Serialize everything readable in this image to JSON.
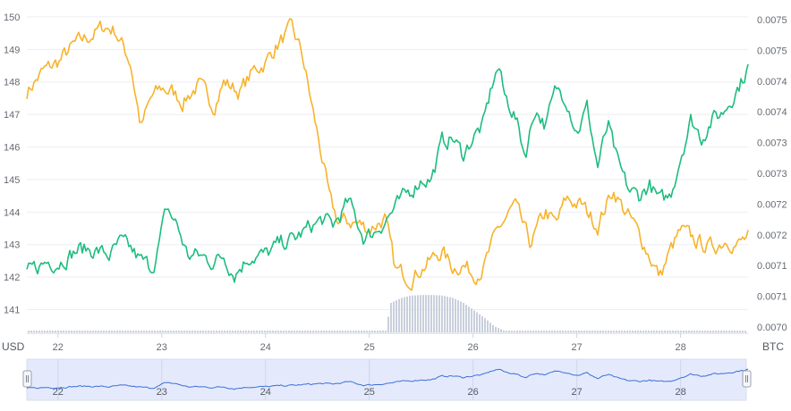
{
  "chart_data": {
    "type": "line",
    "left_unit": "USD",
    "right_unit": "BTC",
    "x_ticks": [
      "22",
      "23",
      "24",
      "25",
      "26",
      "27",
      "28"
    ],
    "x_range_days": [
      21.7,
      28.65
    ],
    "left_axis": {
      "ticks": [
        "141",
        "142",
        "143",
        "144",
        "145",
        "146",
        "147",
        "148",
        "149",
        "150"
      ],
      "range": [
        140.3,
        150.3
      ]
    },
    "right_axis": {
      "ticks": [
        "0.0070",
        "0.0071",
        "0.0071",
        "0.0072",
        "0.0072",
        "0.0073",
        "0.0073",
        "0.0074",
        "0.0074",
        "0.0075",
        "0.0075"
      ],
      "range": [
        0.007,
        0.00755
      ]
    },
    "grid": true,
    "series": [
      {
        "axis": "left",
        "color": "#f7b32b",
        "x": [
          21.7,
          21.85,
          22.0,
          22.15,
          22.3,
          22.45,
          22.55,
          22.7,
          22.8,
          22.9,
          23.0,
          23.1,
          23.2,
          23.35,
          23.5,
          23.6,
          23.75,
          23.9,
          24.0,
          24.1,
          24.25,
          24.35,
          24.45,
          24.55,
          24.62,
          24.7,
          24.85,
          25.0,
          25.15,
          25.25,
          25.4,
          25.55,
          25.7,
          25.8,
          25.9,
          26.0,
          26.1,
          26.25,
          26.4,
          26.55,
          26.7,
          26.8,
          26.9,
          27.05,
          27.2,
          27.35,
          27.45,
          27.55,
          27.65,
          27.8,
          27.9,
          28.0,
          28.15,
          28.3,
          28.45,
          28.55,
          28.65
        ],
        "values": [
          147.7,
          148.3,
          148.6,
          149.1,
          149.4,
          149.7,
          149.6,
          148.6,
          146.6,
          147.5,
          147.8,
          147.7,
          147.4,
          147.9,
          147.3,
          148.0,
          147.7,
          148.4,
          148.6,
          149.1,
          149.6,
          148.9,
          147.2,
          145.6,
          144.3,
          143.7,
          143.7,
          143.5,
          143.8,
          142.2,
          142.0,
          142.4,
          142.8,
          142.3,
          142.4,
          142.1,
          142.3,
          143.5,
          144.2,
          143.0,
          144.0,
          143.6,
          144.4,
          144.2,
          143.6,
          144.7,
          144.1,
          143.6,
          143.0,
          142.0,
          142.8,
          143.4,
          143.1,
          142.9,
          143.2,
          143.0,
          143.2
        ]
      },
      {
        "axis": "right",
        "color": "#1ebc7f",
        "x": [
          21.7,
          21.8,
          21.9,
          22.0,
          22.1,
          22.2,
          22.35,
          22.5,
          22.6,
          22.7,
          22.8,
          22.9,
          22.95,
          23.05,
          23.15,
          23.25,
          23.35,
          23.5,
          23.6,
          23.7,
          23.85,
          24.0,
          24.15,
          24.3,
          24.45,
          24.55,
          24.65,
          24.8,
          24.95,
          25.05,
          25.2,
          25.35,
          25.5,
          25.6,
          25.7,
          25.8,
          25.9,
          26.0,
          26.1,
          26.2,
          26.25,
          26.3,
          26.4,
          26.5,
          26.6,
          26.7,
          26.8,
          26.9,
          27.0,
          27.1,
          27.2,
          27.3,
          27.4,
          27.5,
          27.6,
          27.7,
          27.8,
          27.9,
          28.0,
          28.1,
          28.2,
          28.3,
          28.4,
          28.5,
          28.6,
          28.65
        ],
        "values": [
          0.0071,
          0.00711,
          0.00712,
          0.00712,
          0.00713,
          0.00714,
          0.00714,
          0.00713,
          0.00715,
          0.00714,
          0.00712,
          0.00711,
          0.00713,
          0.00721,
          0.00718,
          0.00713,
          0.00713,
          0.00712,
          0.00713,
          0.0071,
          0.00713,
          0.00713,
          0.00715,
          0.00716,
          0.00718,
          0.00719,
          0.00718,
          0.00722,
          0.00716,
          0.00717,
          0.0072,
          0.00723,
          0.00726,
          0.00726,
          0.00732,
          0.00733,
          0.0073,
          0.00733,
          0.00735,
          0.00743,
          0.00745,
          0.0074,
          0.00737,
          0.0073,
          0.00738,
          0.00735,
          0.00741,
          0.0074,
          0.00734,
          0.00738,
          0.00728,
          0.00735,
          0.00728,
          0.00724,
          0.00723,
          0.00725,
          0.00722,
          0.00723,
          0.0073,
          0.00736,
          0.00733,
          0.00736,
          0.00737,
          0.0074,
          0.00743,
          0.00745
        ]
      }
    ],
    "volume": {
      "x": [
        21.7,
        24.9,
        25.15,
        25.2,
        25.3,
        25.4,
        25.5,
        25.6,
        25.7,
        25.8,
        25.9,
        26.0,
        26.1,
        26.2,
        26.3,
        28.65
      ],
      "values": [
        0.03,
        0.03,
        0.04,
        0.6,
        0.7,
        0.75,
        0.76,
        0.76,
        0.75,
        0.7,
        0.6,
        0.45,
        0.3,
        0.12,
        0.03,
        0.03
      ]
    },
    "navigator": {
      "x_ticks": [
        "22",
        "23",
        "24",
        "25",
        "26",
        "27",
        "28"
      ]
    }
  }
}
